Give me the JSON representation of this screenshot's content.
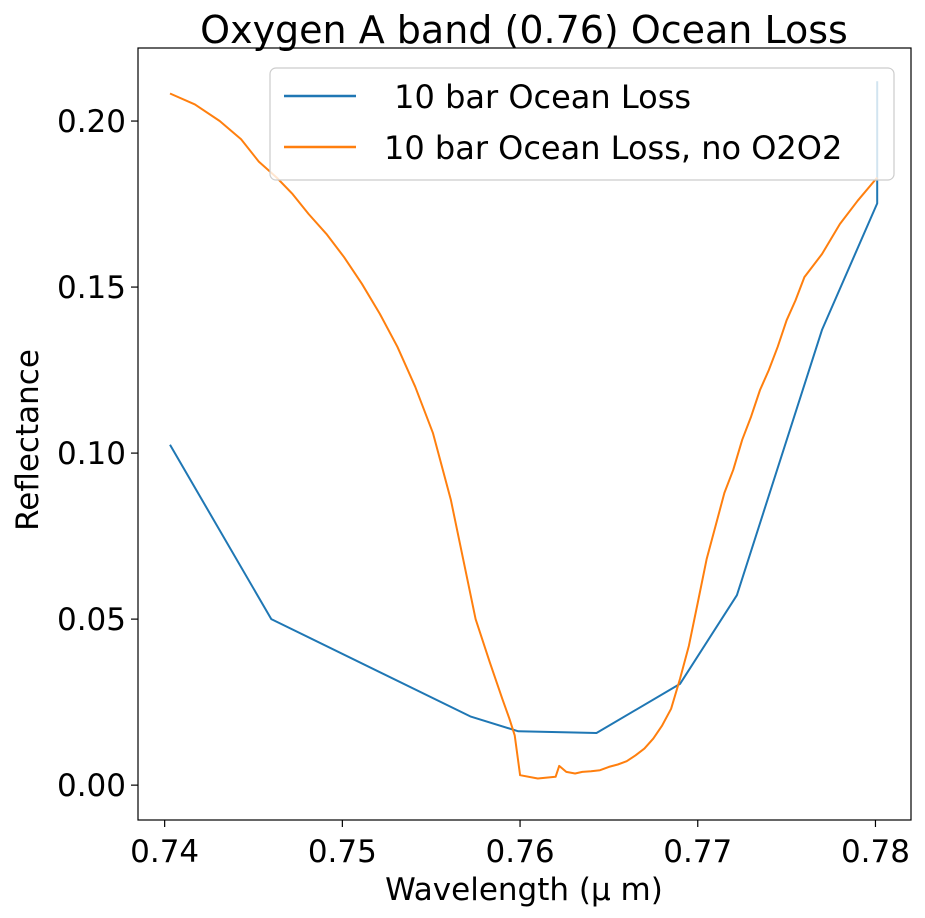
{
  "chart_data": {
    "type": "line",
    "title": "Oxygen A band (0.76) Ocean Loss",
    "xlabel": "Wavelength (μ m)",
    "ylabel": "Reflectance",
    "xlim": [
      0.7385,
      0.782
    ],
    "ylim": [
      -0.0105,
      0.222
    ],
    "xticks": [
      0.74,
      0.75,
      0.76,
      0.77,
      0.78
    ],
    "xtick_labels": [
      "0.74",
      "0.75",
      "0.76",
      "0.77",
      "0.78"
    ],
    "yticks": [
      0.0,
      0.05,
      0.1,
      0.15,
      0.2
    ],
    "ytick_labels": [
      "0.00",
      "0.05",
      "0.10",
      "0.15",
      "0.20"
    ],
    "grid": false,
    "legend_position": "top-right",
    "series": [
      {
        "name": " 10 bar Ocean Loss",
        "color": "#1f77b4",
        "x": [
          0.7403,
          0.746,
          0.7572,
          0.7599,
          0.7643,
          0.769,
          0.7722,
          0.777,
          0.7801,
          0.7801
        ],
        "y": [
          0.1025,
          0.05,
          0.0207,
          0.0162,
          0.0157,
          0.0305,
          0.0572,
          0.1372,
          0.1752,
          0.212
        ]
      },
      {
        "name": "10 bar Ocean Loss, no O2O2",
        "color": "#ff7f0e",
        "x": [
          0.7403,
          0.7417,
          0.7431,
          0.7443,
          0.7453,
          0.7463,
          0.7472,
          0.7481,
          0.7491,
          0.7501,
          0.7511,
          0.7521,
          0.7531,
          0.7541,
          0.7551,
          0.7561,
          0.7568,
          0.7575,
          0.7583,
          0.759,
          0.7594,
          0.7597,
          0.76,
          0.761,
          0.762,
          0.7622,
          0.7626,
          0.7631,
          0.7635,
          0.764,
          0.7645,
          0.765,
          0.7655,
          0.766,
          0.7665,
          0.767,
          0.7675,
          0.768,
          0.7685,
          0.769,
          0.7695,
          0.77,
          0.7705,
          0.771,
          0.7715,
          0.772,
          0.7725,
          0.773,
          0.7735,
          0.774,
          0.7745,
          0.775,
          0.7755,
          0.776,
          0.777,
          0.778,
          0.779,
          0.7801
        ],
        "y": [
          0.2083,
          0.205,
          0.2,
          0.1945,
          0.1878,
          0.183,
          0.178,
          0.172,
          0.166,
          0.159,
          0.151,
          0.142,
          0.132,
          0.12,
          0.106,
          0.086,
          0.068,
          0.05,
          0.037,
          0.026,
          0.02,
          0.015,
          0.003,
          0.002,
          0.0025,
          0.0058,
          0.004,
          0.0035,
          0.004,
          0.0042,
          0.0045,
          0.0055,
          0.0062,
          0.0072,
          0.009,
          0.011,
          0.014,
          0.018,
          0.023,
          0.032,
          0.042,
          0.055,
          0.068,
          0.078,
          0.088,
          0.095,
          0.104,
          0.111,
          0.119,
          0.125,
          0.132,
          0.14,
          0.146,
          0.153,
          0.16,
          0.169,
          0.176,
          0.183
        ]
      }
    ]
  }
}
